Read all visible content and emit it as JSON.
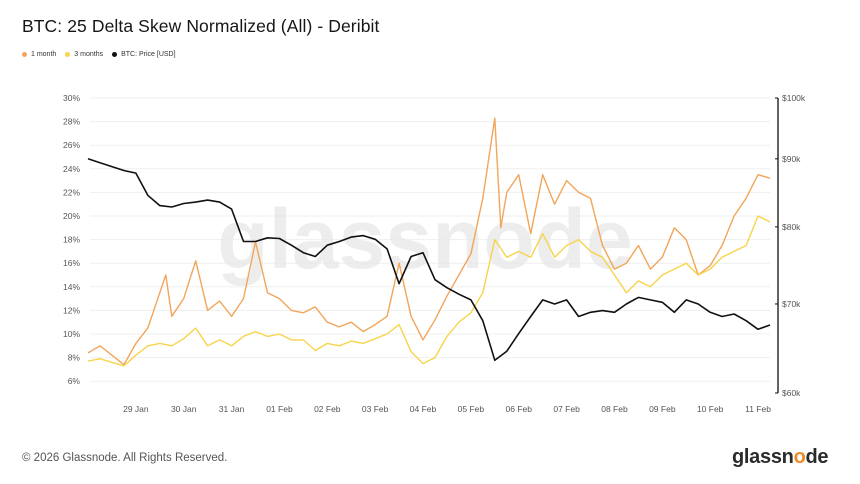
{
  "header": {
    "title": "BTC: 25 Delta Skew Normalized (All) - Deribit"
  },
  "legend": [
    {
      "label": "1 month",
      "color": "#f2a55b"
    },
    {
      "label": "3 months",
      "color": "#f7d44a"
    },
    {
      "label": "BTC: Price [USD]",
      "color": "#111111"
    }
  ],
  "footer": {
    "copyright": "© 2026 Glassnode. All Rights Reserved."
  },
  "watermark": "glassnode",
  "logo": {
    "text_left": "glassn",
    "text_right": "de"
  },
  "chart_data": {
    "type": "line",
    "title": "BTC: 25 Delta Skew Normalized (All) - Deribit",
    "x_axis": {
      "ticks": [
        "29 Jan",
        "30 Jan",
        "31 Jan",
        "01 Feb",
        "02 Feb",
        "03 Feb",
        "04 Feb",
        "05 Feb",
        "06 Feb",
        "07 Feb",
        "08 Feb",
        "09 Feb",
        "10 Feb",
        "11 Feb"
      ],
      "range": [
        "2026-01-28T12:00",
        "2026-02-11T18:00"
      ]
    },
    "y_axis_left": {
      "ticks": [
        "6%",
        "8%",
        "10%",
        "12%",
        "14%",
        "16%",
        "18%",
        "20%",
        "22%",
        "24%",
        "26%",
        "28%",
        "30%"
      ],
      "range": [
        5,
        30
      ],
      "unit": "%"
    },
    "y_axis_right": {
      "ticks": [
        "$60k",
        "$70k",
        "$80k",
        "$90k",
        "$100k"
      ],
      "values": [
        60000,
        70000,
        80000,
        90000,
        100000
      ],
      "range": [
        60000,
        100000
      ],
      "scale": "log"
    },
    "grid": "horizontal",
    "series": [
      {
        "name": "1 month",
        "axis": "left",
        "color": "#f2a55b",
        "points": [
          [
            "2026-01-28T12:00",
            8.4
          ],
          [
            "2026-01-28T18:00",
            9.0
          ],
          [
            "2026-01-29T00:00",
            8.2
          ],
          [
            "2026-01-29T06:00",
            7.4
          ],
          [
            "2026-01-29T12:00",
            9.2
          ],
          [
            "2026-01-29T18:00",
            10.5
          ],
          [
            "2026-01-30T00:00",
            13.5
          ],
          [
            "2026-01-30T03:00",
            15.0
          ],
          [
            "2026-01-30T06:00",
            11.5
          ],
          [
            "2026-01-30T12:00",
            13.0
          ],
          [
            "2026-01-30T18:00",
            16.2
          ],
          [
            "2026-01-31T00:00",
            12.0
          ],
          [
            "2026-01-31T06:00",
            12.8
          ],
          [
            "2026-01-31T12:00",
            11.5
          ],
          [
            "2026-01-31T18:00",
            13.0
          ],
          [
            "2026-02-01T00:00",
            17.8
          ],
          [
            "2026-02-01T06:00",
            13.5
          ],
          [
            "2026-02-01T12:00",
            13.0
          ],
          [
            "2026-02-01T18:00",
            12.0
          ],
          [
            "2026-02-02T00:00",
            11.8
          ],
          [
            "2026-02-02T06:00",
            12.3
          ],
          [
            "2026-02-02T12:00",
            11.0
          ],
          [
            "2026-02-02T18:00",
            10.6
          ],
          [
            "2026-02-03T00:00",
            11.0
          ],
          [
            "2026-02-03T06:00",
            10.2
          ],
          [
            "2026-02-03T12:00",
            10.8
          ],
          [
            "2026-02-03T18:00",
            11.5
          ],
          [
            "2026-02-04T00:00",
            16.0
          ],
          [
            "2026-02-04T06:00",
            11.5
          ],
          [
            "2026-02-04T12:00",
            9.5
          ],
          [
            "2026-02-04T18:00",
            11.2
          ],
          [
            "2026-02-05T00:00",
            13.2
          ],
          [
            "2026-02-05T06:00",
            15.0
          ],
          [
            "2026-02-05T12:00",
            16.8
          ],
          [
            "2026-02-05T18:00",
            21.5
          ],
          [
            "2026-02-06T00:00",
            28.3
          ],
          [
            "2026-02-06T03:00",
            19.0
          ],
          [
            "2026-02-06T06:00",
            22.0
          ],
          [
            "2026-02-06T12:00",
            23.5
          ],
          [
            "2026-02-06T18:00",
            18.5
          ],
          [
            "2026-02-07T00:00",
            23.5
          ],
          [
            "2026-02-07T06:00",
            21.0
          ],
          [
            "2026-02-07T12:00",
            23.0
          ],
          [
            "2026-02-07T18:00",
            22.0
          ],
          [
            "2026-02-08T00:00",
            21.5
          ],
          [
            "2026-02-08T06:00",
            17.5
          ],
          [
            "2026-02-08T12:00",
            15.5
          ],
          [
            "2026-02-08T18:00",
            16.0
          ],
          [
            "2026-02-09T00:00",
            17.5
          ],
          [
            "2026-02-09T06:00",
            15.5
          ],
          [
            "2026-02-09T12:00",
            16.5
          ],
          [
            "2026-02-09T18:00",
            19.0
          ],
          [
            "2026-02-10T00:00",
            18.0
          ],
          [
            "2026-02-10T06:00",
            15.0
          ],
          [
            "2026-02-10T12:00",
            15.8
          ],
          [
            "2026-02-10T18:00",
            17.5
          ],
          [
            "2026-02-11T00:00",
            20.0
          ],
          [
            "2026-02-11T06:00",
            21.5
          ],
          [
            "2026-02-11T12:00",
            23.5
          ],
          [
            "2026-02-11T18:00",
            23.2
          ]
        ]
      },
      {
        "name": "3 months",
        "axis": "left",
        "color": "#f7d44a",
        "points": [
          [
            "2026-01-28T12:00",
            7.7
          ],
          [
            "2026-01-28T18:00",
            7.9
          ],
          [
            "2026-01-29T00:00",
            7.6
          ],
          [
            "2026-01-29T06:00",
            7.3
          ],
          [
            "2026-01-29T12:00",
            8.2
          ],
          [
            "2026-01-29T18:00",
            9.0
          ],
          [
            "2026-01-30T00:00",
            9.2
          ],
          [
            "2026-01-30T06:00",
            9.0
          ],
          [
            "2026-01-30T12:00",
            9.6
          ],
          [
            "2026-01-30T18:00",
            10.5
          ],
          [
            "2026-01-31T00:00",
            9.0
          ],
          [
            "2026-01-31T06:00",
            9.5
          ],
          [
            "2026-01-31T12:00",
            9.0
          ],
          [
            "2026-01-31T18:00",
            9.8
          ],
          [
            "2026-02-01T00:00",
            10.2
          ],
          [
            "2026-02-01T06:00",
            9.8
          ],
          [
            "2026-02-01T12:00",
            10.0
          ],
          [
            "2026-02-01T18:00",
            9.5
          ],
          [
            "2026-02-02T00:00",
            9.5
          ],
          [
            "2026-02-02T06:00",
            8.6
          ],
          [
            "2026-02-02T12:00",
            9.2
          ],
          [
            "2026-02-02T18:00",
            9.0
          ],
          [
            "2026-02-03T00:00",
            9.4
          ],
          [
            "2026-02-03T06:00",
            9.2
          ],
          [
            "2026-02-03T12:00",
            9.6
          ],
          [
            "2026-02-03T18:00",
            10.0
          ],
          [
            "2026-02-04T00:00",
            10.8
          ],
          [
            "2026-02-04T06:00",
            8.5
          ],
          [
            "2026-02-04T12:00",
            7.5
          ],
          [
            "2026-02-04T18:00",
            8.0
          ],
          [
            "2026-02-05T00:00",
            9.8
          ],
          [
            "2026-02-05T06:00",
            11.0
          ],
          [
            "2026-02-05T12:00",
            11.8
          ],
          [
            "2026-02-05T18:00",
            13.5
          ],
          [
            "2026-02-06T00:00",
            18.0
          ],
          [
            "2026-02-06T06:00",
            16.5
          ],
          [
            "2026-02-06T12:00",
            17.0
          ],
          [
            "2026-02-06T18:00",
            16.5
          ],
          [
            "2026-02-07T00:00",
            18.5
          ],
          [
            "2026-02-07T06:00",
            16.5
          ],
          [
            "2026-02-07T12:00",
            17.5
          ],
          [
            "2026-02-07T18:00",
            18.0
          ],
          [
            "2026-02-08T00:00",
            17.0
          ],
          [
            "2026-02-08T06:00",
            16.5
          ],
          [
            "2026-02-08T12:00",
            15.0
          ],
          [
            "2026-02-08T18:00",
            13.5
          ],
          [
            "2026-02-09T00:00",
            14.5
          ],
          [
            "2026-02-09T06:00",
            14.0
          ],
          [
            "2026-02-09T12:00",
            15.0
          ],
          [
            "2026-02-09T18:00",
            15.5
          ],
          [
            "2026-02-10T00:00",
            16.0
          ],
          [
            "2026-02-10T06:00",
            15.0
          ],
          [
            "2026-02-10T12:00",
            15.5
          ],
          [
            "2026-02-10T18:00",
            16.5
          ],
          [
            "2026-02-11T00:00",
            17.0
          ],
          [
            "2026-02-11T06:00",
            17.5
          ],
          [
            "2026-02-11T12:00",
            20.0
          ],
          [
            "2026-02-11T18:00",
            19.5
          ]
        ]
      },
      {
        "name": "BTC: Price [USD]",
        "axis": "right",
        "color": "#111111",
        "points": [
          [
            "2026-01-28T12:00",
            90000
          ],
          [
            "2026-01-28T18:00",
            89400
          ],
          [
            "2026-01-29T00:00",
            88800
          ],
          [
            "2026-01-29T06:00",
            88200
          ],
          [
            "2026-01-29T12:00",
            87800
          ],
          [
            "2026-01-29T18:00",
            84500
          ],
          [
            "2026-01-30T00:00",
            83000
          ],
          [
            "2026-01-30T06:00",
            82800
          ],
          [
            "2026-01-30T12:00",
            83300
          ],
          [
            "2026-01-30T18:00",
            83500
          ],
          [
            "2026-01-31T00:00",
            83800
          ],
          [
            "2026-01-31T06:00",
            83500
          ],
          [
            "2026-01-31T12:00",
            82500
          ],
          [
            "2026-01-31T18:00",
            78000
          ],
          [
            "2026-02-01T00:00",
            78000
          ],
          [
            "2026-02-01T06:00",
            78500
          ],
          [
            "2026-02-01T12:00",
            78400
          ],
          [
            "2026-02-01T18:00",
            77500
          ],
          [
            "2026-02-02T00:00",
            76500
          ],
          [
            "2026-02-02T06:00",
            76000
          ],
          [
            "2026-02-02T12:00",
            77500
          ],
          [
            "2026-02-02T18:00",
            78000
          ],
          [
            "2026-02-03T00:00",
            78600
          ],
          [
            "2026-02-03T06:00",
            78800
          ],
          [
            "2026-02-03T12:00",
            78300
          ],
          [
            "2026-02-03T18:00",
            77000
          ],
          [
            "2026-02-04T00:00",
            72500
          ],
          [
            "2026-02-04T06:00",
            76000
          ],
          [
            "2026-02-04T12:00",
            76500
          ],
          [
            "2026-02-04T18:00",
            73000
          ],
          [
            "2026-02-05T00:00",
            72000
          ],
          [
            "2026-02-05T06:00",
            71200
          ],
          [
            "2026-02-05T12:00",
            70500
          ],
          [
            "2026-02-05T18:00",
            68000
          ],
          [
            "2026-02-06T00:00",
            63500
          ],
          [
            "2026-02-06T06:00",
            64500
          ],
          [
            "2026-02-06T12:00",
            66500
          ],
          [
            "2026-02-06T18:00",
            68500
          ],
          [
            "2026-02-07T00:00",
            70500
          ],
          [
            "2026-02-07T06:00",
            70000
          ],
          [
            "2026-02-07T12:00",
            70500
          ],
          [
            "2026-02-07T18:00",
            68500
          ],
          [
            "2026-02-08T00:00",
            69000
          ],
          [
            "2026-02-08T06:00",
            69200
          ],
          [
            "2026-02-08T12:00",
            69000
          ],
          [
            "2026-02-08T18:00",
            70000
          ],
          [
            "2026-02-09T00:00",
            70800
          ],
          [
            "2026-02-09T06:00",
            70500
          ],
          [
            "2026-02-09T12:00",
            70200
          ],
          [
            "2026-02-09T18:00",
            69000
          ],
          [
            "2026-02-10T00:00",
            70500
          ],
          [
            "2026-02-10T06:00",
            70000
          ],
          [
            "2026-02-10T12:00",
            69000
          ],
          [
            "2026-02-10T18:00",
            68500
          ],
          [
            "2026-02-11T00:00",
            68800
          ],
          [
            "2026-02-11T06:00",
            68000
          ],
          [
            "2026-02-11T12:00",
            67000
          ],
          [
            "2026-02-11T18:00",
            67500
          ]
        ]
      }
    ]
  }
}
